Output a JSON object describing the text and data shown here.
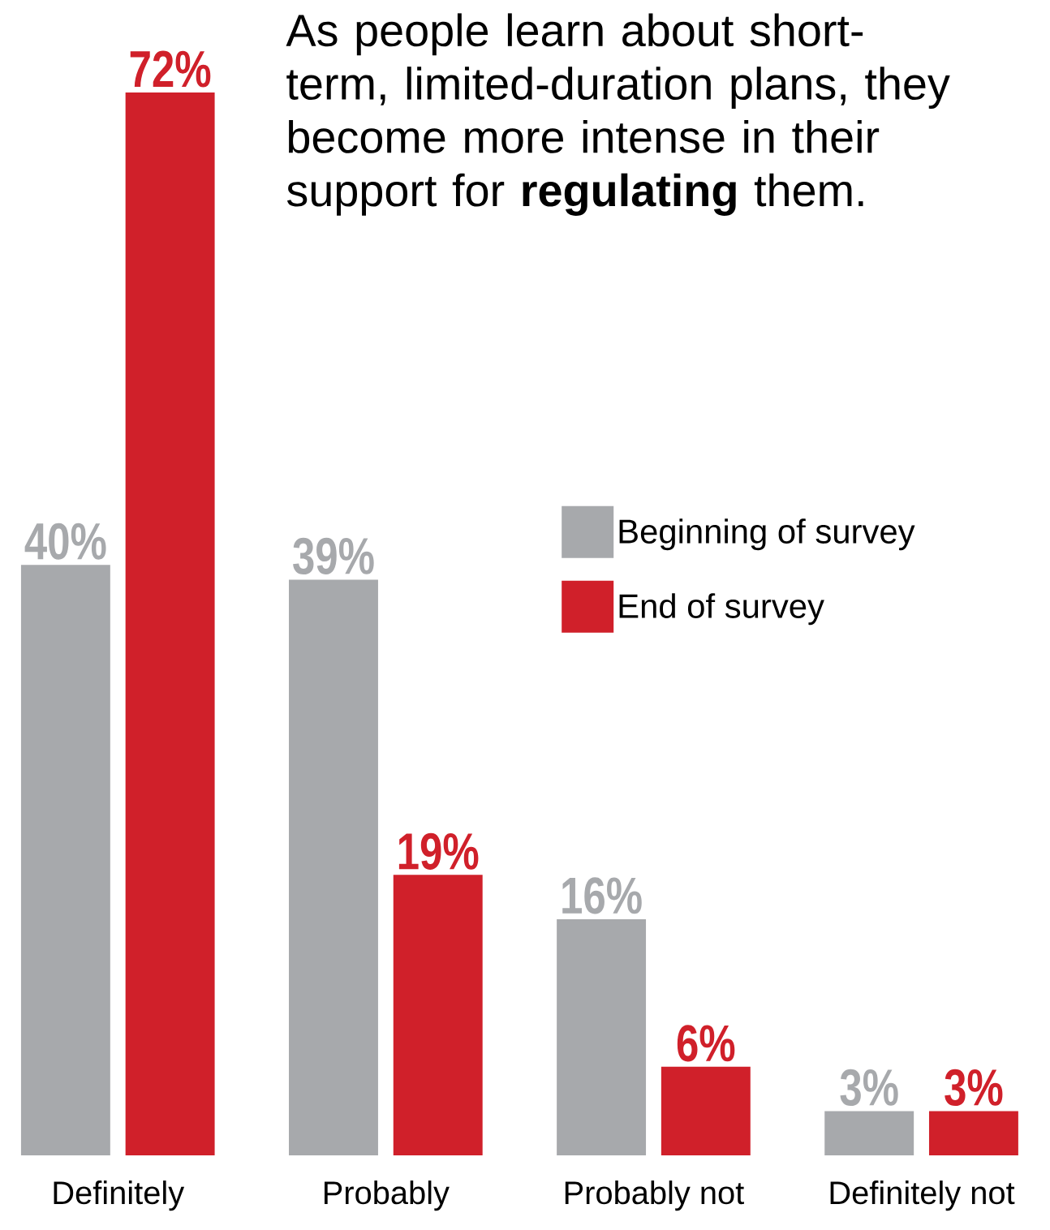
{
  "chart_data": {
    "type": "bar",
    "title": "As people learn about short-term, limited-duration plans, they become more intense in their support for **regulating** them.",
    "categories": [
      "Definitely",
      "Probably",
      "Probably not",
      "Definitely not"
    ],
    "series": [
      {
        "name": "Beginning of survey",
        "color": "#a7a9ac",
        "values": [
          40,
          39,
          16,
          3
        ],
        "value_labels": [
          "40%",
          "39%",
          "16%",
          "3%"
        ]
      },
      {
        "name": "End of survey",
        "color": "#d0202a",
        "values": [
          72,
          19,
          6,
          3
        ],
        "value_labels": [
          "72%",
          "19%",
          "6%",
          "3%"
        ]
      }
    ],
    "legend": "right"
  }
}
